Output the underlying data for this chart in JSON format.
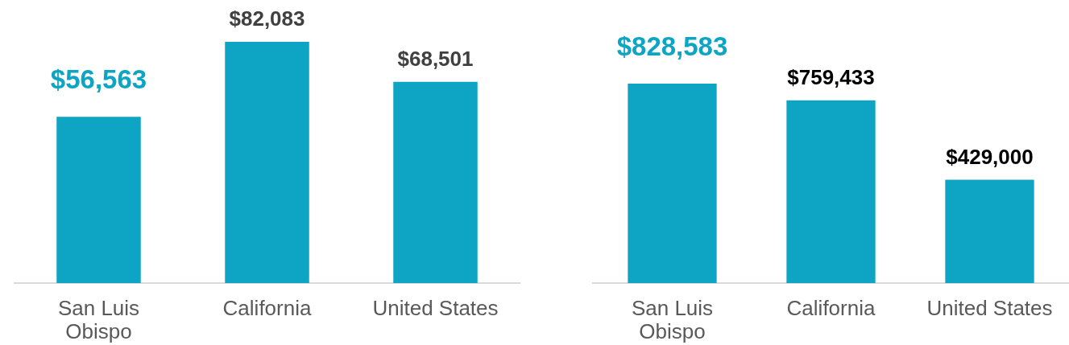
{
  "chart_data": [
    {
      "type": "bar",
      "categories": [
        "San Luis Obispo",
        "California",
        "United States"
      ],
      "values": [
        56563,
        82083,
        68501
      ],
      "value_labels": [
        "$56,563",
        "$82,083",
        "$68,501"
      ],
      "color": "#0ea5c4",
      "tick_labels": "x"
    },
    {
      "type": "bar",
      "categories": [
        "San Luis Obispo",
        "California",
        "United States"
      ],
      "values": [
        828583,
        759433,
        429000
      ],
      "value_labels": [
        "$828,583",
        "$759,433",
        "$429,000"
      ],
      "color": "#0ea5c4",
      "tick_labels": "x"
    }
  ]
}
